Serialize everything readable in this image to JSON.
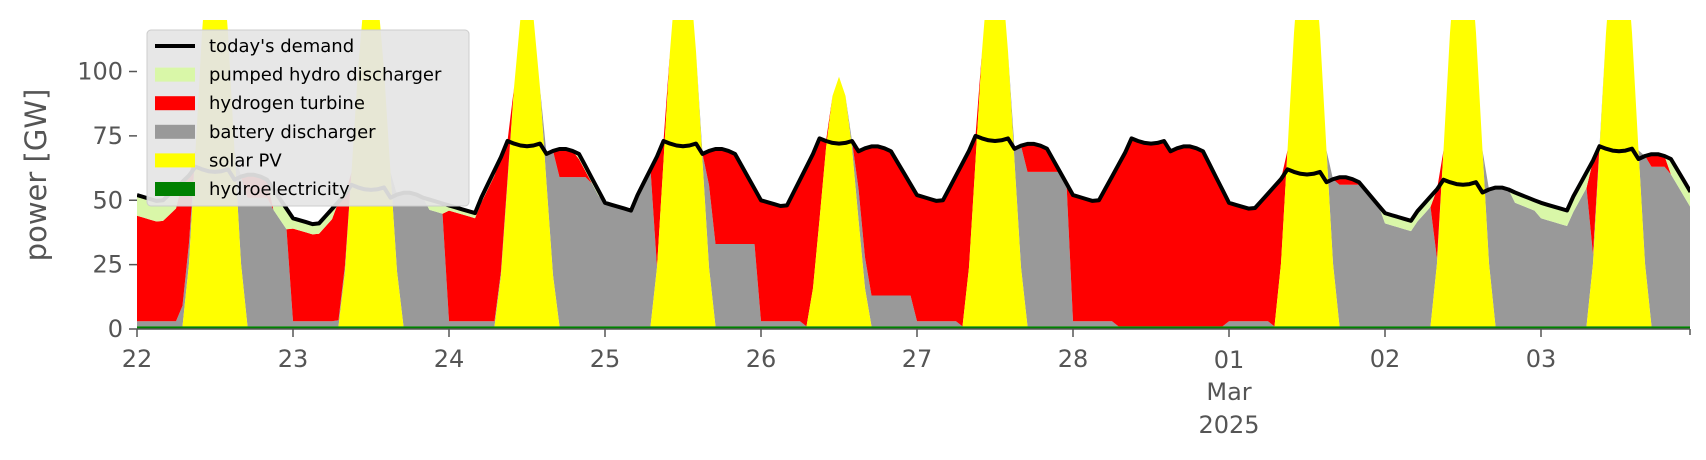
{
  "chart_data": {
    "type": "area",
    "title": "",
    "xlabel": "",
    "ylabel": "power [GW]",
    "ylim": [
      0,
      120
    ],
    "y_ticks": [
      "0",
      "25",
      "50",
      "75",
      "100"
    ],
    "x_ticks": [
      {
        "day": 0,
        "label": "22"
      },
      {
        "day": 1,
        "label": "23"
      },
      {
        "day": 2,
        "label": "24"
      },
      {
        "day": 3,
        "label": "25"
      },
      {
        "day": 4,
        "label": "26"
      },
      {
        "day": 5,
        "label": "27"
      },
      {
        "day": 6,
        "label": "28"
      },
      {
        "day": 7,
        "label": "01"
      },
      {
        "day": 8,
        "label": "02"
      },
      {
        "day": 9,
        "label": "03"
      }
    ],
    "x_sublabel_month": "Mar",
    "x_sublabel_year": "2025",
    "xlim_days": [
      0,
      9.95
    ],
    "grid": false,
    "legend_position": "top-left",
    "legend": [
      {
        "name": "today's demand",
        "kind": "line",
        "color": "#000000"
      },
      {
        "name": "pumped hydro discharger",
        "kind": "patch",
        "color": "#d9f7a8"
      },
      {
        "name": "hydrogen turbine",
        "kind": "patch",
        "color": "#ff0000"
      },
      {
        "name": "battery discharger",
        "kind": "patch",
        "color": "#999999"
      },
      {
        "name": "solar PV",
        "kind": "patch",
        "color": "#ffff00"
      },
      {
        "name": "hydroelectricity",
        "kind": "patch",
        "color": "#008000"
      }
    ],
    "day_profiles": [
      {
        "base": 52,
        "peak": 62,
        "night": "hydrogen",
        "morning": "hydrogen",
        "evening": "battery",
        "morning_h2": 40,
        "evening_batt": 50,
        "phd": 8
      },
      {
        "base": 43,
        "peak": 55,
        "night": "hydrogen",
        "morning": "hydrogen",
        "evening": "battery",
        "morning_h2": 12,
        "evening_batt": 52,
        "phd": 4
      },
      {
        "base": 48,
        "peak": 72,
        "night": "hydrogen",
        "morning": "hydrogen",
        "evening": "battery",
        "morning_h2": 8,
        "evening_batt": 58,
        "phd": 2
      },
      {
        "base": 49,
        "peak": 72,
        "night": "battery",
        "morning": "hydrogen",
        "evening": "battery",
        "morning_h2": 0,
        "evening_batt": 32,
        "phd": 0
      },
      {
        "base": 50,
        "peak": 73,
        "night": "hydrogen",
        "morning": "hydrogen",
        "evening": "battery",
        "morning_h2": 0,
        "evening_batt": 12,
        "phd": 0
      },
      {
        "base": 52,
        "peak": 74,
        "night": "hydrogen",
        "morning": "hydrogen",
        "evening": "battery",
        "morning_h2": 0,
        "evening_batt": 60,
        "phd": 0
      },
      {
        "base": 52,
        "peak": 73,
        "night": "hydrogen",
        "morning": "hydrogen",
        "evening": "hydrogen",
        "morning_h2": 0,
        "evening_batt": 2,
        "phd": 0
      },
      {
        "base": 49,
        "peak": 61,
        "night": "hydrogen",
        "morning": "hydrogen",
        "evening": "battery",
        "morning_h2": 0,
        "evening_batt": 55,
        "phd": 0
      },
      {
        "base": 45,
        "peak": 57,
        "night": "battery",
        "morning": "hydrogen",
        "evening": "battery",
        "morning_h2": 9,
        "evening_batt": 55,
        "phd": 4
      },
      {
        "base": 49,
        "peak": 70,
        "night": "battery",
        "morning": "hydrogen",
        "evening": "battery",
        "morning_h2": 18,
        "evening_batt": 62,
        "phd": 6
      }
    ],
    "solar_peaks_gw": [
      160,
      140,
      130,
      150,
      97,
      150,
      0,
      160,
      160,
      160
    ],
    "series": [
      {
        "name": "today's demand",
        "daily_min_gw": [
          43,
          42,
          47,
          48,
          49,
          52,
          52,
          48,
          44,
          48
        ],
        "daily_max_gw": [
          62,
          57,
          73,
          73,
          74,
          75,
          73,
          62,
          57,
          71
        ]
      },
      {
        "name": "hydroelectricity",
        "approx_gw": 1
      }
    ]
  }
}
